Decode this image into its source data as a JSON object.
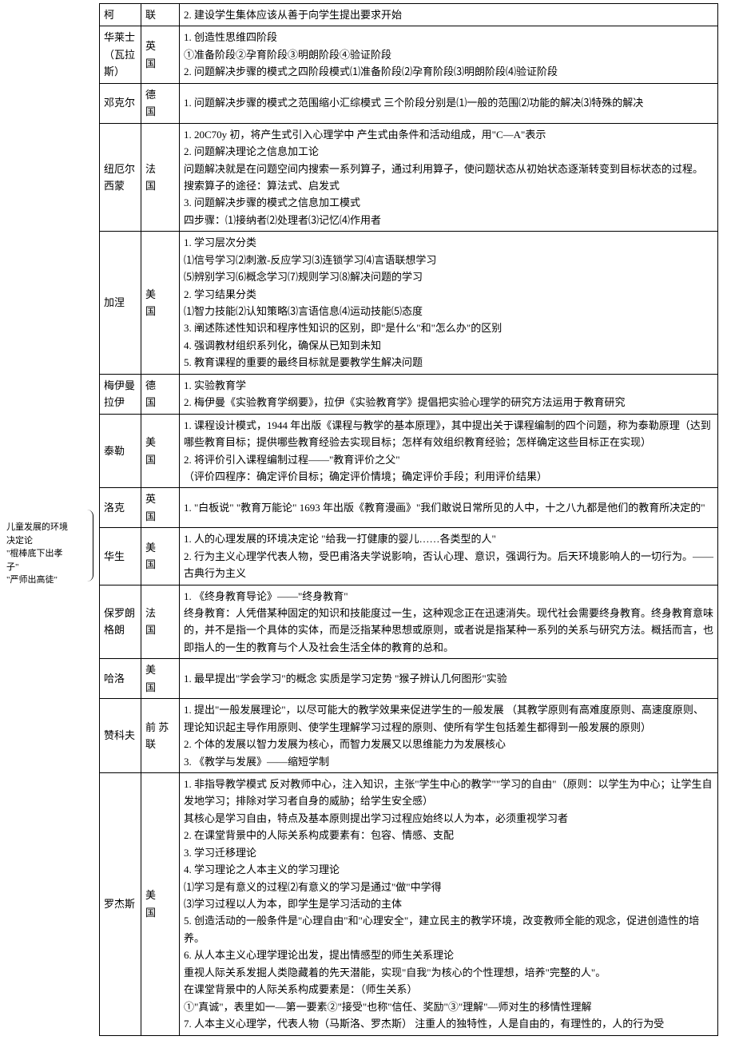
{
  "sideNote": {
    "l1": "儿童发展的环境",
    "l2": "决定论",
    "l3": "\"棍棒底下出孝",
    "l4": "子\"",
    "l5": "\"严师出高徒\""
  },
  "rows": [
    {
      "name": "柯",
      "country": "联",
      "content": [
        "2. 建设学生集体应该从善于向学生提出要求开始"
      ]
    },
    {
      "name": "华莱士（瓦拉斯）",
      "nameMultiline": true,
      "country": "英国",
      "content": [
        "1. 创造性思维四阶段",
        "①准备阶段②孕育阶段③明朗阶段④验证阶段",
        "2. 问题解决步骤的模式之四阶段模式⑴准备阶段⑵孕育阶段⑶明朗阶段⑷验证阶段"
      ]
    },
    {
      "name": "邓克尔",
      "country": "德国",
      "content": [
        "1. 问题解决步骤的模式之范围缩小汇综模式  三个阶段分别是⑴一般的范围⑵功能的解决⑶特殊的解决"
      ]
    },
    {
      "name": "纽厄尔西蒙",
      "nameMultiline": true,
      "country": "法国",
      "content": [
        "1. 20C70y 初，将产生式引入心理学中   产生式由条件和活动组成，用\"C—A\"表示",
        "2. 问题解决理论之信息加工论",
        "问题解决就是在问题空间内搜索一系列算子，通过利用算子，使问题状态从初始状态逐渐转变到目标状态的过程。",
        "搜索算子的途径：算法式、启发式",
        "3. 问题解决步骤的模式之信息加工模式",
        "四步骤：⑴接纳者⑵处理者⑶记忆⑷作用者"
      ]
    },
    {
      "name": "加涅",
      "country": "美国",
      "content": [
        "1. 学习层次分类",
        "⑴信号学习⑵刺激-反应学习⑶连锁学习⑷言语联想学习",
        "⑸辨别学习⑹概念学习⑺规则学习⑻解决问题的学习",
        "2. 学习结果分类",
        "⑴智力技能⑵认知策略⑶言语信息⑷运动技能⑸态度",
        "3. 阐述陈述性知识和程序性知识的区别，即\"是什么\"和\"怎么办\"的区别",
        "4. 强调教材组织系列化，确保从已知到未知",
        "5. 教育课程的重要的最终目标就是要教学生解决问题"
      ]
    },
    {
      "name": "梅伊曼拉伊",
      "nameMultiline": true,
      "country": "德国",
      "content": [
        "1. 实验教育学",
        "2. 梅伊曼《实验教育学纲要》，拉伊《实验教育学》提倡把实验心理学的研究方法运用于教育研究"
      ]
    },
    {
      "name": "泰勒",
      "country": "美国",
      "content": [
        "1. 课程设计模式，1944 年出版《课程与教学的基本原理》，其中提出关于课程编制的四个问题，称为泰勒原理（达到哪些教育目标；提供哪些教育经验去实现目标；怎样有效组织教育经验；怎样确定这些目标正在实现）",
        "2. 将评价引入课程编制过程——\"教育评价之父\"",
        "（评价四程序：确定评价目标；确定评价情境；确定评价手段；利用评价结果）"
      ]
    },
    {
      "name": "洛克",
      "country": "英国",
      "content": [
        "1. \"白板说\"  \"教育万能论\"  1693 年出版《教育漫画》\"我们敢说日常所见的人中，十之八九都是他们的教育所决定的\""
      ]
    },
    {
      "name": "华生",
      "country": "美国",
      "content": [
        "1. 人的心理发展的环境决定论   \"给我一打健康的婴儿……各类型的人\"",
        "2. 行为主义心理学代表人物，受巴甫洛夫学说影响，否认心理、意识，强调行为。后天环境影响人的一切行为。——古典行为主义"
      ]
    },
    {
      "name": "保罗朗格朗",
      "nameMultiline": true,
      "country": "法国",
      "content": [
        "1. 《终身教育导论》——\"终身教育\"",
        "终身教育：人凭借某种固定的知识和技能度过一生，这种观念正在迅速消失。现代社会需要终身教育。终身教育意味的，并不是指一个具体的实体，而是泛指某种思想或原则，或者说是指某种一系列的关系与研究方法。概括而言，也即指人的一生的教育与个人及社会生活全体的教育的总和。"
      ]
    },
    {
      "name": "哈洛",
      "country": "美国",
      "content": [
        "1. 最早提出\"学会学习\"的概念  实质是学习定势  \"猴子辨认几何图形\"实验"
      ]
    },
    {
      "name": "赞科夫",
      "country": "前 苏联",
      "countryTight": true,
      "content": [
        "1. 提出\"一般发展理论\"，以尽可能大的教学效果来促进学生的一般发展   （其教学原则有高难度原则、高速度原则、理论知识起主导作用原则、使学生理解学习过程的原则、使所有学生包括差生都得到一般发展的原则）",
        "2. 个体的发展以智力发展为核心，而智力发展又以思维能力为发展核心",
        "3. 《教学与发展》——缩短学制"
      ]
    },
    {
      "name": "罗杰斯",
      "country": "美国",
      "content": [
        "1. 非指导教学模式  反对教师中心，注入知识，主张\"学生中心的教学\"\"学习的自由\"（原则：以学生为中心；让学生自发地学习；排除对学习者自身的威胁；给学生安全感）",
        "其核心是学习自由，特点及基本原则提出学习过程应始终以人为本，必须重视学习者",
        "2. 在课堂背景中的人际关系构成要素有：包容、情感、支配",
        "3. 学习迁移理论",
        "4. 学习理论之人本主义的学习理论",
        "⑴学习是有意义的过程⑵有意义的学习是通过\"做\"中学得",
        "⑶学习过程以人为本，即学生是学习活动的主体",
        "5. 创造活动的一般条件是\"心理自由\"和\"心理安全\"，建立民主的教学环境，改变教师全能的观念，促进创造性的培养。",
        "6. 从人本主义心理学理论出发，提出情感型的师生关系理论",
        "重视人际关系发掘人类隐藏着的先天潜能，实现\"自我\"为核心的个性理想，培养\"完整的人\"。",
        "在课堂背景中的人际关系构成要素是：（师生关系）",
        "①\"真诚\"，表里如一—第一要素②\"接受\"也称\"信任、奖励\"③\"理解\"—师对生的移情性理解",
        "7. 人本主义心理学，代表人物（马斯洛、罗杰斯）  注重人的独特性，人是自由的，有理性的，人的行为受"
      ]
    }
  ]
}
